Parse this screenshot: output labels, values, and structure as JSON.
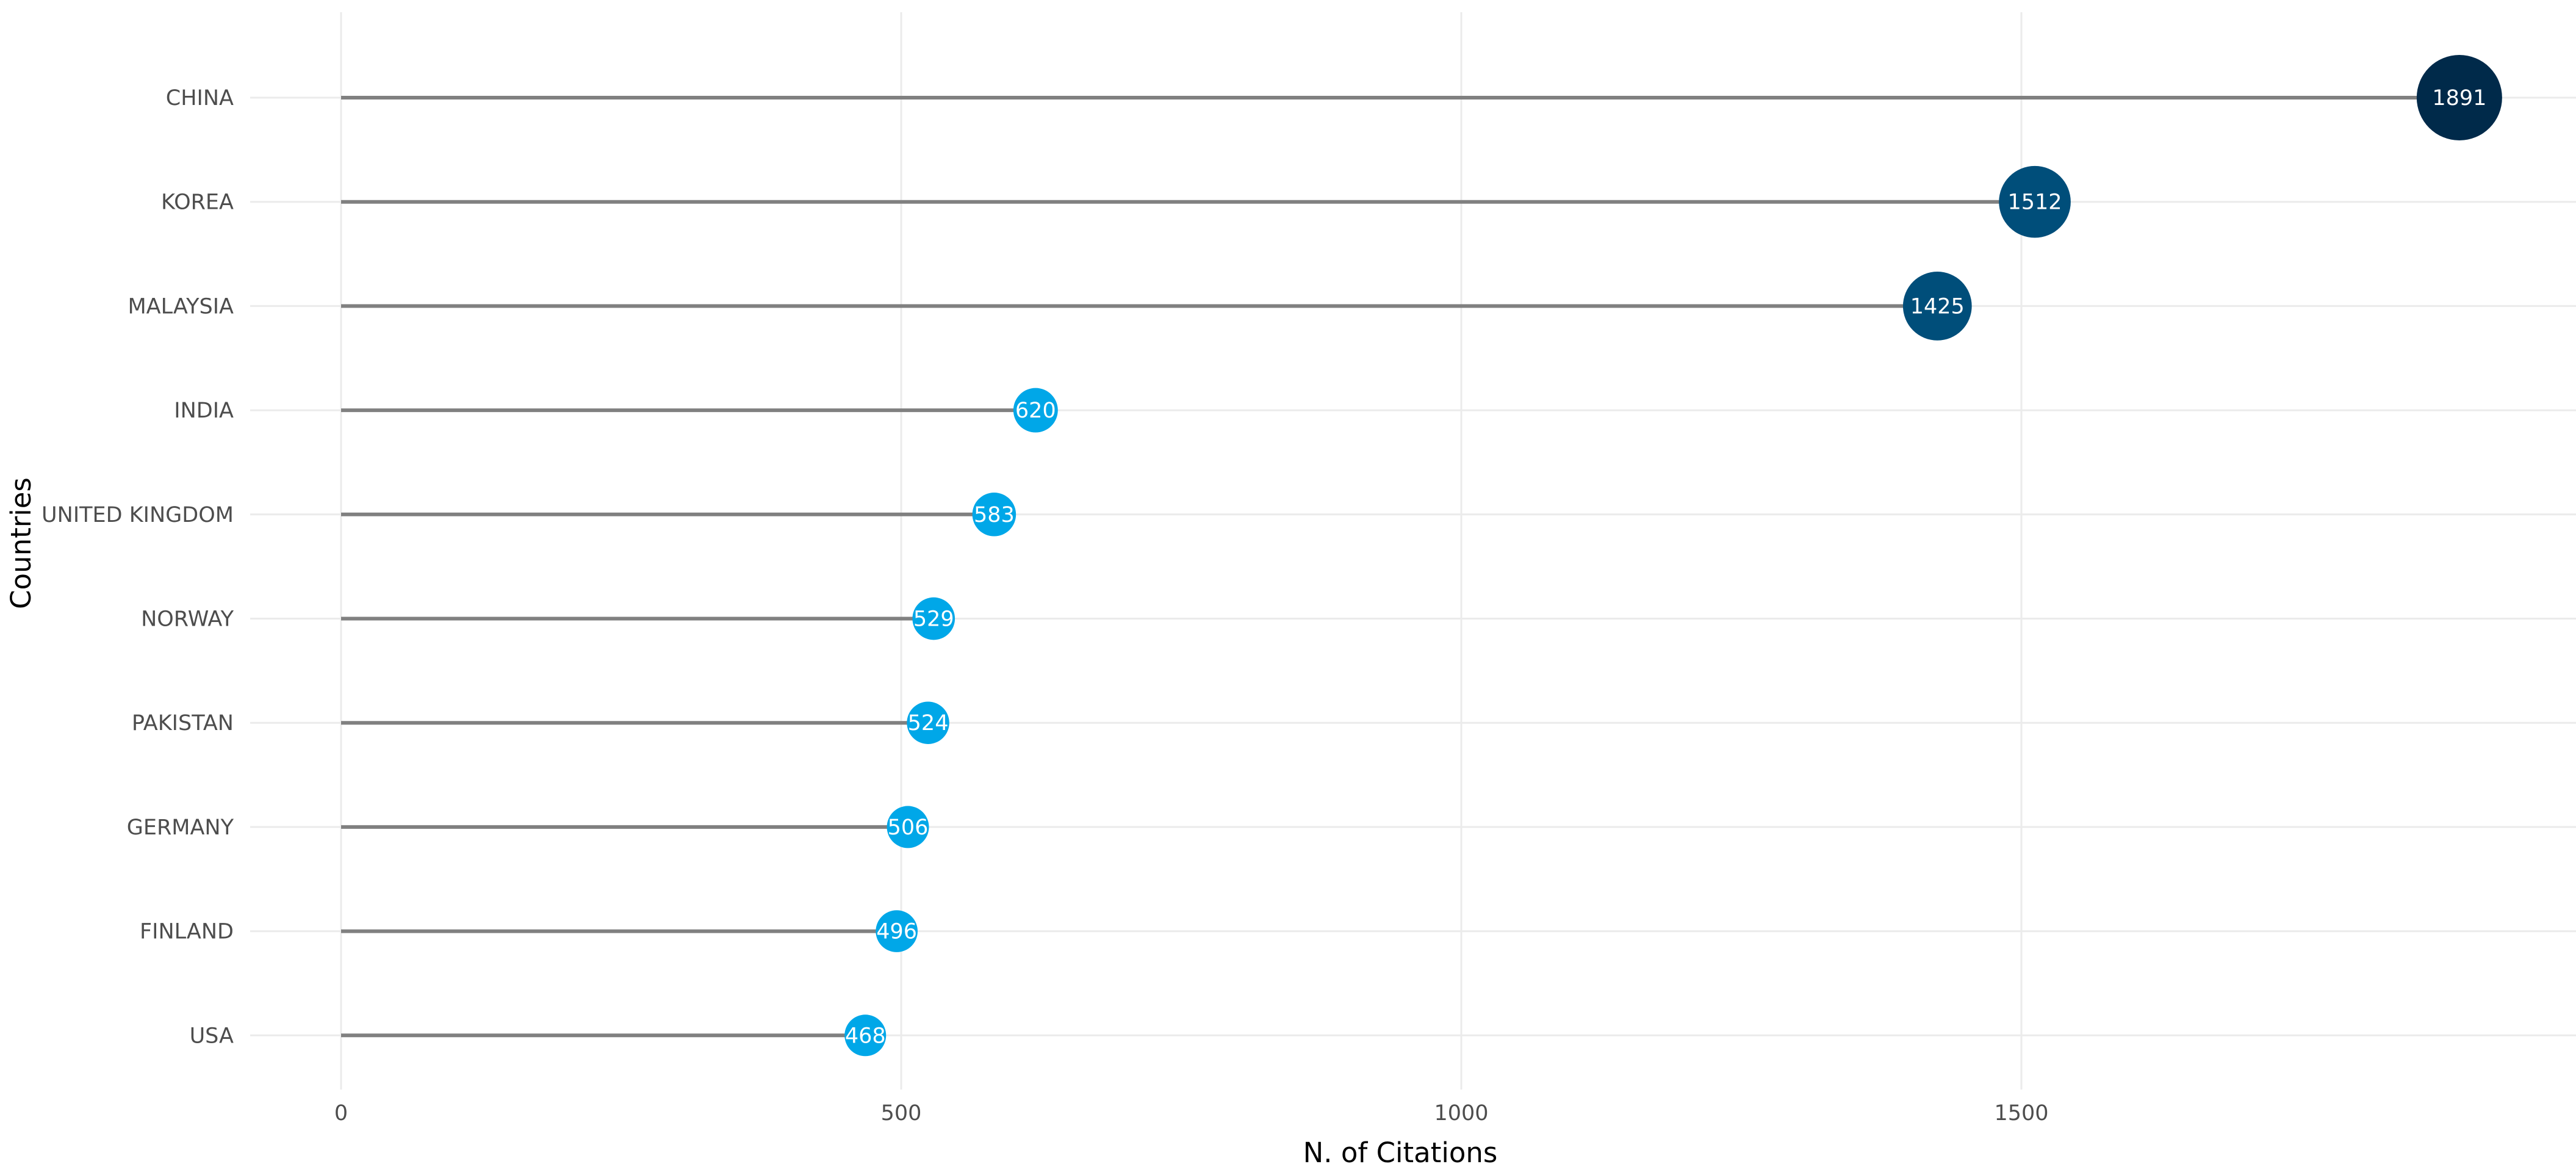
{
  "chart_data": {
    "type": "lollipop",
    "xlabel": "N. of Citations",
    "ylabel": "Countries",
    "xlim": [
      -140,
      1955
    ],
    "x_ticks": [
      0,
      500,
      1000,
      1500
    ],
    "grid": true,
    "categories": [
      "CHINA",
      "KOREA",
      "MALAYSIA",
      "INDIA",
      "UNITED KINGDOM",
      "NORWAY",
      "PAKISTAN",
      "GERMANY",
      "FINLAND",
      "USA"
    ],
    "values": [
      1891,
      1512,
      1425,
      620,
      583,
      529,
      524,
      506,
      496,
      468
    ],
    "value_labels": [
      "1891",
      "1512",
      "1425",
      "620",
      "583",
      "529",
      "524",
      "506",
      "496",
      "468"
    ],
    "colors": {
      "low": "#00A7E8",
      "mid": "#004E7A",
      "high": "#002A4A",
      "stem": "#808080",
      "grid": "#EBEBEB"
    }
  }
}
